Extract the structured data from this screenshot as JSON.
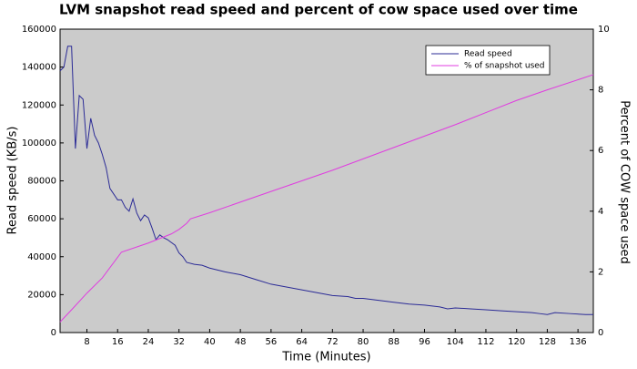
{
  "chart_data": {
    "type": "line",
    "title": "LVM snapshot read speed and percent of cow space used over time",
    "x_label": "Time (Minutes)",
    "y_label": "Read speed (KB/s)",
    "y2_label": "Percent of COW space used",
    "xlim": [
      1,
      140
    ],
    "xticks": [
      8,
      16,
      24,
      32,
      40,
      48,
      56,
      64,
      72,
      80,
      88,
      96,
      104,
      112,
      120,
      128,
      136
    ],
    "ylim": [
      0,
      160000
    ],
    "yticks": [
      0,
      20000,
      40000,
      60000,
      80000,
      100000,
      120000,
      140000,
      160000
    ],
    "y2lim": [
      0,
      10
    ],
    "y2ticks": [
      0,
      2,
      4,
      6,
      8,
      10
    ],
    "legend": "upper right",
    "series": [
      {
        "name": "Read speed",
        "color": "#2b2b96",
        "x": [
          1,
          2,
          3,
          4,
          5,
          6,
          7,
          8,
          9,
          10,
          11,
          12,
          13,
          14,
          15,
          16,
          17,
          18,
          19,
          20,
          21,
          22,
          23,
          24,
          25,
          26,
          27,
          28,
          29,
          30,
          31,
          32,
          33,
          34,
          36,
          38,
          40,
          44,
          48,
          52,
          56,
          60,
          64,
          68,
          72,
          76,
          78,
          80,
          84,
          88,
          92,
          96,
          100,
          102,
          104,
          108,
          112,
          116,
          120,
          124,
          126,
          128,
          130,
          134,
          138,
          140
        ],
        "values": [
          138000,
          140000,
          151000,
          151000,
          97000,
          125000,
          123000,
          97000,
          113000,
          104000,
          100000,
          94000,
          87000,
          76000,
          73000,
          70000,
          70000,
          66000,
          64000,
          70500,
          63000,
          59000,
          62000,
          60500,
          55000,
          49000,
          51500,
          50000,
          49000,
          47500,
          46000,
          42000,
          40000,
          37000,
          36000,
          35500,
          34000,
          32000,
          30500,
          28000,
          25500,
          24000,
          22500,
          21000,
          19500,
          19000,
          18000,
          18000,
          17000,
          16000,
          15000,
          14500,
          13500,
          12500,
          13000,
          12500,
          12000,
          11500,
          11000,
          10500,
          10000,
          9500,
          10500,
          10000,
          9500,
          9500
        ]
      },
      {
        "name": "% of snapshot used",
        "color": "#e03ce0",
        "axis": "y2",
        "x": [
          1,
          4,
          8,
          12,
          17,
          24,
          30,
          32,
          34,
          35,
          40,
          56,
          72,
          88,
          104,
          112,
          120,
          128,
          140
        ],
        "values": [
          0.35,
          0.75,
          1.3,
          1.8,
          2.65,
          2.95,
          3.25,
          3.4,
          3.6,
          3.75,
          3.95,
          4.65,
          5.35,
          6.1,
          6.85,
          7.25,
          7.65,
          8.0,
          8.5
        ]
      }
    ]
  }
}
